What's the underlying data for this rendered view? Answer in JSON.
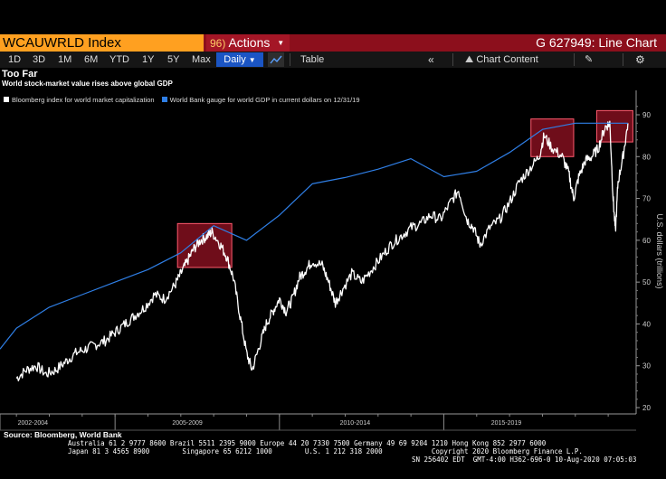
{
  "titlebar": {
    "ticker": "WCAUWRLD Index",
    "actions_num": "96)",
    "actions_label": "Actions",
    "chart_id": "G 627949: Line Chart"
  },
  "toolbar": {
    "ranges": [
      "1D",
      "3D",
      "1M",
      "6M",
      "YTD",
      "1Y",
      "5Y",
      "Max"
    ],
    "frequency": "Daily",
    "table_label": "Table",
    "chart_content_label": "Chart Content"
  },
  "header": {
    "title": "Too Far",
    "subtitle": "World stock-market value rises above global GDP"
  },
  "legend": [
    {
      "name": "Bloomberg index for world market capitalization",
      "color": "#ffffff"
    },
    {
      "name": "World Bank gauge for world GDP in current dollars on 12/31/19",
      "color": "#2f7fe6"
    }
  ],
  "footer": {
    "source": "Source: Bloomberg, World Bank",
    "line1": "Australia 61 2 9777 8600 Brazil 5511 2395 9000 Europe 44 20 7330 7500 Germany 49 69 9204 1210 Hong Kong 852 2977 6000",
    "line2": "Japan 81 3 4565 8900        Singapore 65 6212 1000        U.S. 1 212 318 2000            Copyright 2020 Bloomberg Finance L.P.",
    "line3": "SN 256402 EDT  GMT-4:00 H362-696-0 10-Aug-2020 07:05:03"
  },
  "colors": {
    "stock_line": "#ffffff",
    "gdp_line": "#2f7fe6",
    "highlight_fill": "#8b1020",
    "highlight_border": "#ff5a6e"
  },
  "chart_data": {
    "type": "line",
    "ylabel": "U.S. dollars (trillions)",
    "ylim": [
      20,
      93
    ],
    "yticks": [
      20,
      30,
      40,
      50,
      60,
      70,
      80,
      90
    ],
    "x_period_labels": [
      "2002-2004",
      "2005-2009",
      "2010-2014",
      "2015-2019"
    ],
    "grid": false,
    "series": [
      {
        "name": "Bloomberg index for world market capitalization",
        "color": "#ffffff",
        "x": [
          2002.0,
          2002.3,
          2002.6,
          2002.9,
          2003.2,
          2003.5,
          2003.8,
          2004.1,
          2004.4,
          2004.7,
          2005.0,
          2005.3,
          2005.6,
          2005.9,
          2006.2,
          2006.5,
          2006.8,
          2007.0,
          2007.2,
          2007.4,
          2007.6,
          2007.8,
          2007.95,
          2008.2,
          2008.4,
          2008.6,
          2008.8,
          2009.0,
          2009.17,
          2009.4,
          2009.6,
          2009.8,
          2010.0,
          2010.2,
          2010.4,
          2010.6,
          2010.8,
          2011.0,
          2011.3,
          2011.5,
          2011.7,
          2011.9,
          2012.2,
          2012.5,
          2012.8,
          2013.1,
          2013.4,
          2013.7,
          2014.0,
          2014.3,
          2014.6,
          2014.9,
          2015.2,
          2015.45,
          2015.7,
          2015.9,
          2016.1,
          2016.4,
          2016.7,
          2017.0,
          2017.3,
          2017.6,
          2017.9,
          2018.05,
          2018.3,
          2018.6,
          2018.8,
          2018.95,
          2019.1,
          2019.3,
          2019.5,
          2019.7,
          2019.9,
          2020.05,
          2020.15,
          2020.22,
          2020.3,
          2020.45,
          2020.6
        ],
        "values": [
          27,
          29,
          30,
          28,
          29,
          31,
          33,
          34,
          35,
          36,
          38,
          40,
          42,
          44,
          47,
          46,
          49,
          52,
          55,
          58,
          60,
          61,
          62,
          59,
          56,
          51,
          42,
          33,
          29,
          35,
          40,
          43,
          46,
          43,
          46,
          51,
          53,
          55,
          54,
          50,
          45,
          48,
          52,
          50,
          53,
          56,
          59,
          61,
          63,
          64,
          66,
          65,
          69,
          72,
          65,
          63,
          59,
          63,
          65,
          69,
          74,
          77,
          80,
          85,
          82,
          80,
          76,
          70,
          75,
          79,
          80,
          82,
          87,
          88,
          70,
          62,
          74,
          80,
          88
        ]
      },
      {
        "name": "World Bank gauge for world GDP in current dollars on 12/31/19",
        "color": "#2f7fe6",
        "x": [
          2001.5,
          2002.0,
          2003.0,
          2004.0,
          2005.0,
          2006.0,
          2007.0,
          2008.0,
          2009.0,
          2010.0,
          2011.0,
          2012.0,
          2013.0,
          2014.0,
          2015.0,
          2016.0,
          2017.0,
          2018.0,
          2019.0,
          2020.6
        ],
        "values": [
          34,
          39,
          44,
          47,
          50,
          53,
          57,
          63.5,
          60,
          66,
          73.5,
          75,
          77,
          79.5,
          75.2,
          76.5,
          81,
          86.5,
          88,
          88
        ]
      }
    ],
    "annotations": [
      {
        "type": "highlight",
        "x_start": 2006.9,
        "x_end": 2008.55,
        "y_start": 53.5,
        "y_end": 64
      },
      {
        "type": "highlight",
        "x_start": 2017.65,
        "x_end": 2018.95,
        "y_start": 80,
        "y_end": 89
      },
      {
        "type": "highlight",
        "x_start": 2019.65,
        "x_end": 2020.75,
        "y_start": 83.5,
        "y_end": 91
      }
    ]
  }
}
